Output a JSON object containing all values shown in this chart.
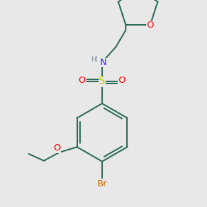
{
  "background_color": "#e8e8e8",
  "bond_color": "#2d6b5a",
  "atom_colors": {
    "O": "#ff0000",
    "N": "#1a1aff",
    "S": "#cccc00",
    "Br": "#cc6600",
    "H": "#708090",
    "C": "#2d6b5a"
  },
  "figsize": [
    3.0,
    3.0
  ],
  "dpi": 100
}
